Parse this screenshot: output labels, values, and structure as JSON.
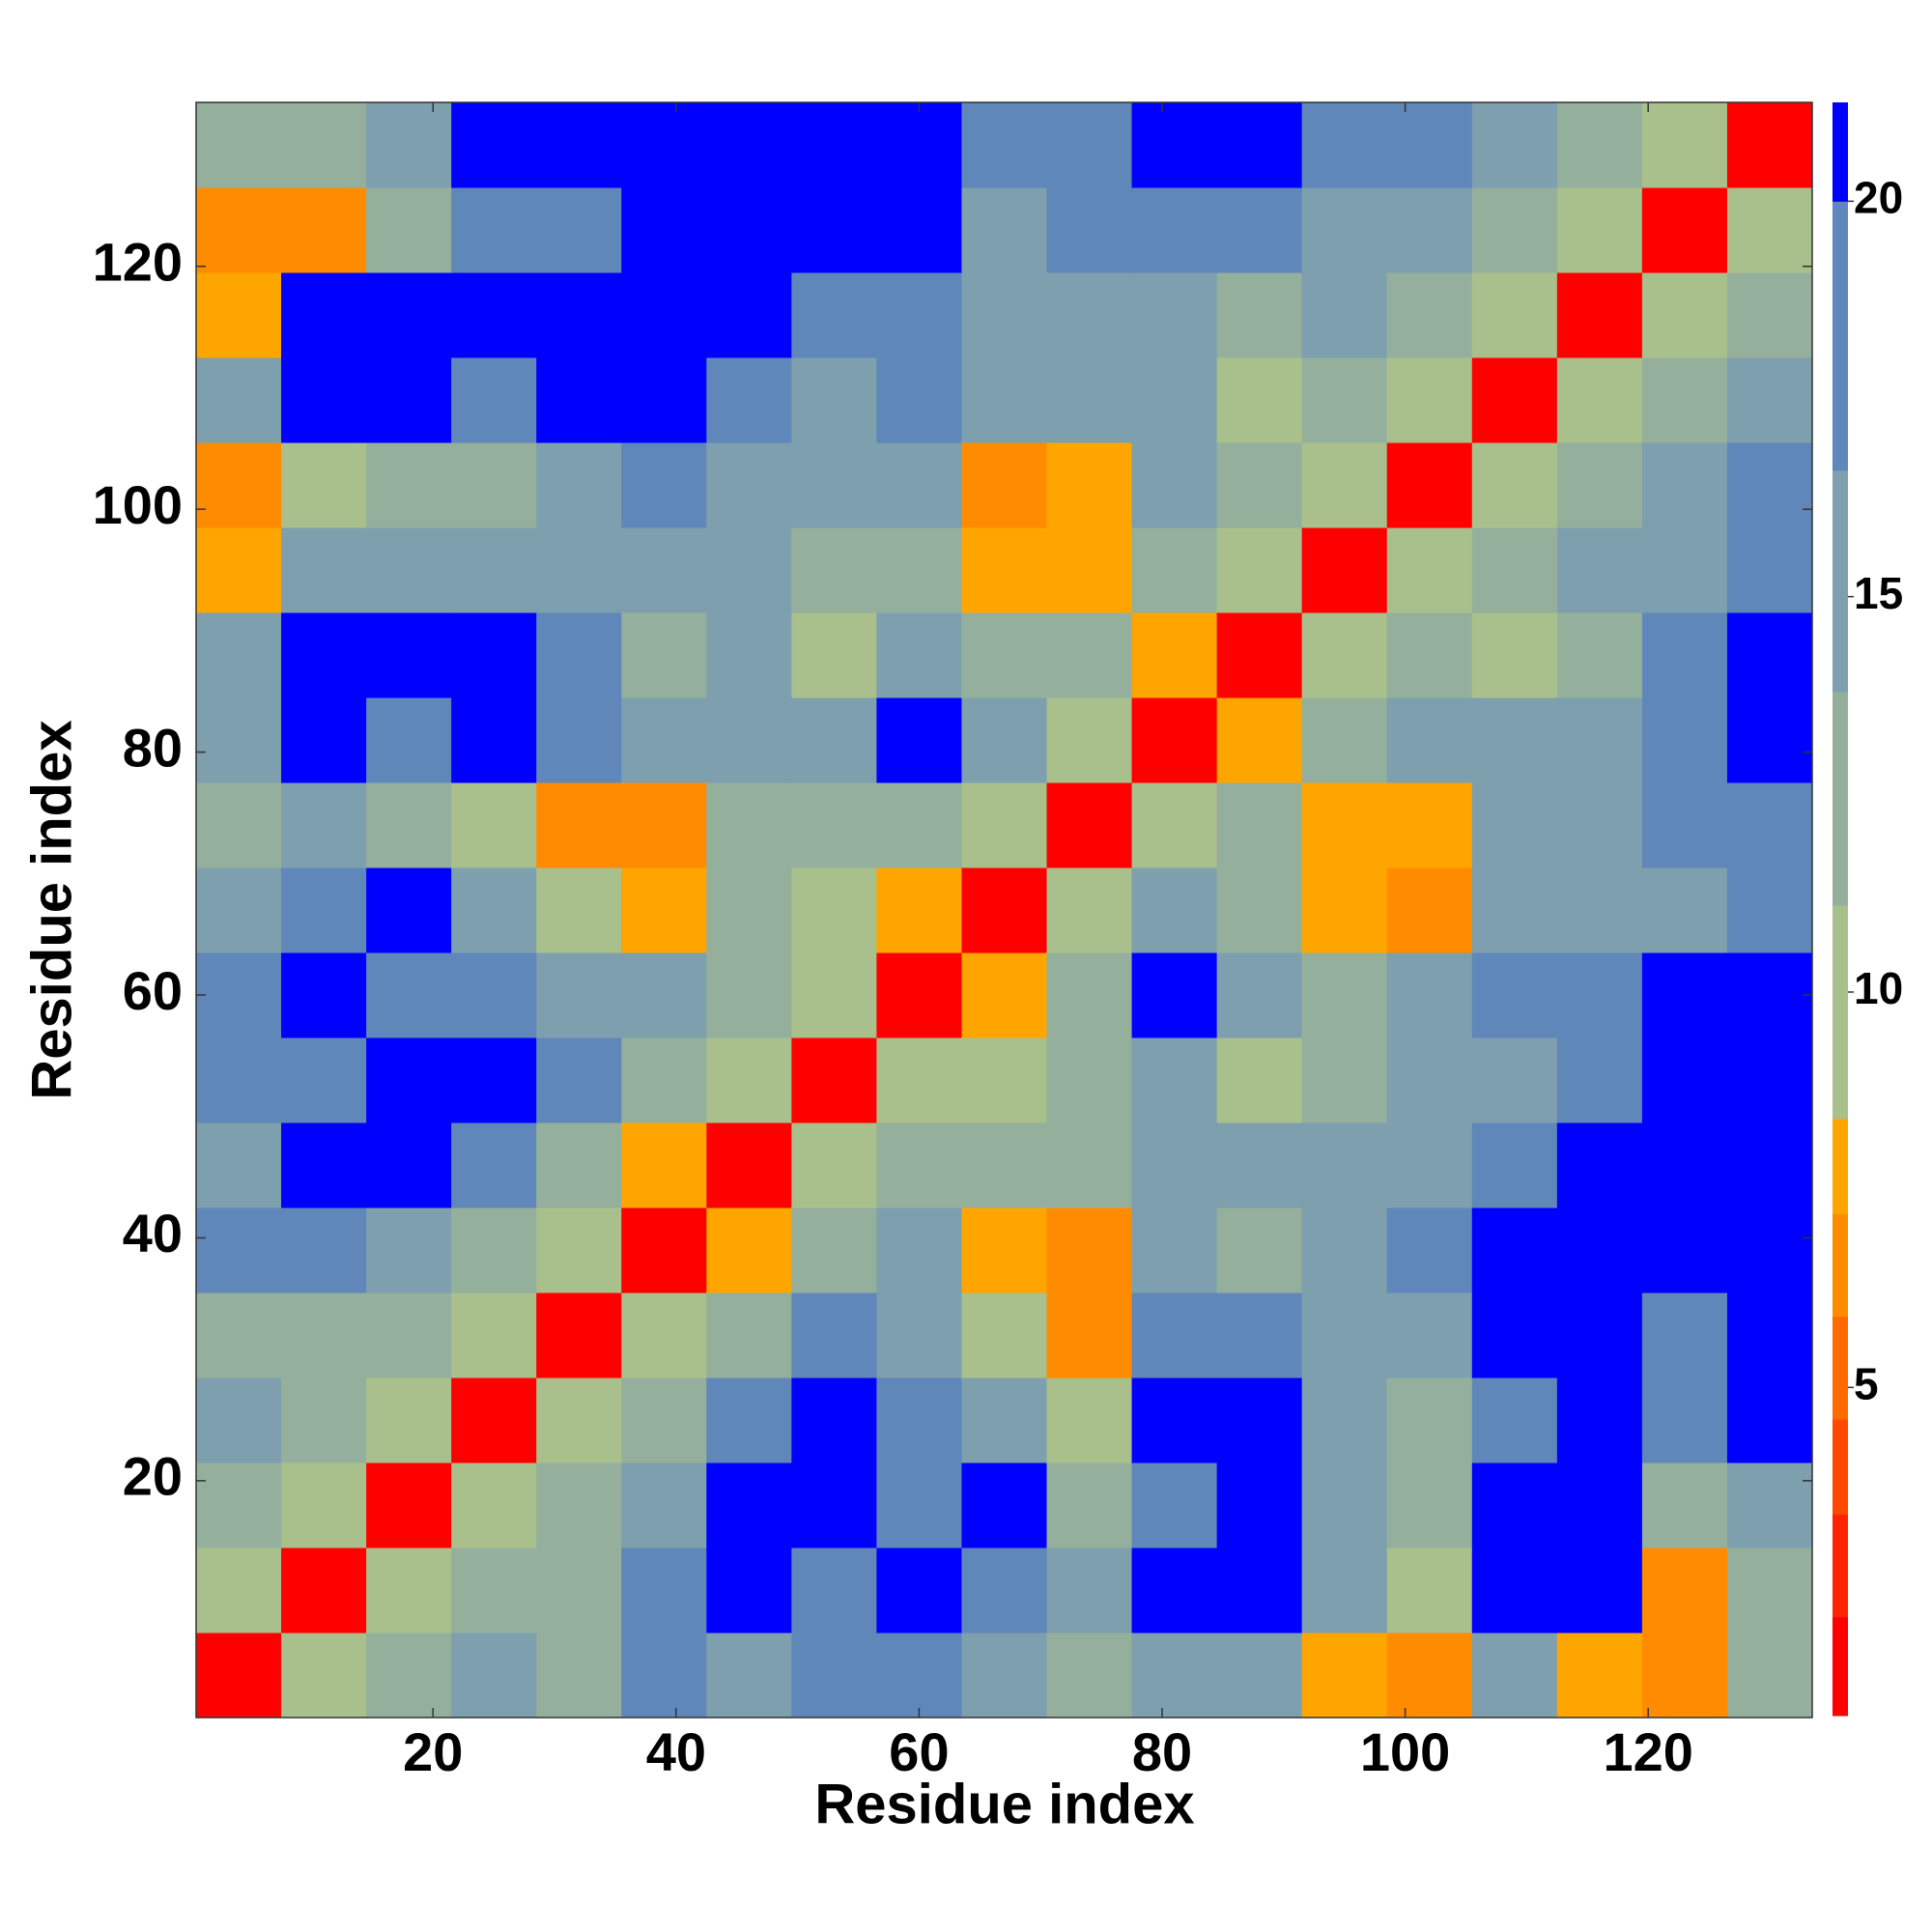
{
  "chart_data": {
    "type": "heatmap",
    "xlabel": "Residue index",
    "ylabel": "Residue index",
    "xbins": [
      0.5,
      7.5,
      14.5,
      21.5,
      28.5,
      35.5,
      42.5,
      49.5,
      56.5,
      63.5,
      70.5,
      77.5,
      84.5,
      91.5,
      98.5,
      105.5,
      112.5,
      119.5,
      126.5,
      133.5
    ],
    "ybins": [
      0.5,
      7.5,
      14.5,
      21.5,
      28.5,
      35.5,
      42.5,
      49.5,
      56.5,
      63.5,
      70.5,
      77.5,
      84.5,
      91.5,
      98.5,
      105.5,
      112.5,
      119.5,
      126.5,
      133.5
    ],
    "values": [
      [
        2,
        9,
        13,
        16,
        13,
        17,
        15,
        19,
        19,
        15,
        12,
        16,
        14,
        8,
        7,
        16,
        8,
        7,
        12
      ],
      [
        9,
        2,
        10,
        13,
        12,
        18,
        20,
        17,
        21,
        19,
        14,
        20,
        21,
        15,
        10,
        21,
        21,
        7,
        13
      ],
      [
        13,
        10,
        2,
        10,
        12,
        16,
        20,
        21,
        19,
        20,
        12,
        17,
        21,
        16,
        12,
        21,
        21,
        13,
        16
      ],
      [
        16,
        13,
        10,
        2,
        9,
        12,
        18,
        21,
        18,
        16,
        11,
        21,
        20,
        15,
        13,
        19,
        21,
        18,
        21
      ],
      [
        13,
        12,
        12,
        9,
        2,
        9,
        13,
        17,
        15,
        9,
        7,
        18,
        19,
        14,
        15,
        20,
        21,
        19,
        21
      ],
      [
        17,
        18,
        16,
        12,
        9,
        2,
        8,
        12,
        14,
        8,
        7,
        15,
        12,
        14,
        17,
        20,
        21,
        21,
        21
      ],
      [
        15,
        20,
        20,
        18,
        13,
        8,
        2,
        9,
        12,
        13,
        12,
        16,
        14,
        15,
        16,
        19,
        21,
        21,
        21
      ],
      [
        19,
        17,
        21,
        21,
        17,
        12,
        9,
        2,
        9,
        11,
        13,
        16,
        10,
        13,
        15,
        16,
        18,
        21,
        21
      ],
      [
        19,
        21,
        19,
        18,
        15,
        14,
        12,
        9,
        2,
        8,
        13,
        20,
        14,
        12,
        14,
        17,
        19,
        21,
        20
      ],
      [
        15,
        19,
        20,
        16,
        9,
        8,
        13,
        11,
        8,
        2,
        9,
        14,
        12,
        8,
        7,
        16,
        15,
        16,
        19
      ],
      [
        12,
        14,
        12,
        11,
        7,
        7,
        12,
        13,
        13,
        9,
        2,
        9,
        12,
        8,
        8,
        14,
        15,
        17,
        17
      ],
      [
        16,
        20,
        17,
        21,
        18,
        15,
        16,
        16,
        20,
        14,
        9,
        2,
        8,
        12,
        14,
        14,
        16,
        18,
        20
      ],
      [
        14,
        21,
        21,
        20,
        19,
        12,
        14,
        10,
        14,
        12,
        12,
        8,
        2,
        9,
        12,
        11,
        13,
        18,
        21
      ],
      [
        8,
        15,
        16,
        15,
        14,
        14,
        15,
        13,
        12,
        8,
        8,
        12,
        9,
        2,
        9,
        13,
        15,
        16,
        19
      ],
      [
        7,
        10,
        12,
        13,
        15,
        17,
        16,
        15,
        14,
        7,
        8,
        14,
        12,
        9,
        2,
        9,
        12,
        15,
        19
      ],
      [
        16,
        21,
        21,
        19,
        20,
        20,
        19,
        16,
        17,
        16,
        14,
        14,
        11,
        13,
        9,
        2,
        9,
        12,
        16
      ],
      [
        8,
        21,
        21,
        21,
        21,
        21,
        21,
        18,
        19,
        15,
        15,
        16,
        13,
        15,
        12,
        9,
        2,
        9,
        12
      ],
      [
        7,
        7,
        13,
        18,
        19,
        21,
        21,
        21,
        21,
        16,
        17,
        18,
        18,
        16,
        15,
        12,
        9,
        2,
        9
      ],
      [
        12,
        13,
        16,
        21,
        21,
        21,
        21,
        21,
        20,
        19,
        17,
        20,
        21,
        19,
        19,
        16,
        12,
        9,
        2
      ]
    ],
    "xlim": [
      0.5,
      133.5
    ],
    "ylim": [
      0.5,
      133.5
    ],
    "xticks": [
      20,
      40,
      60,
      80,
      100,
      120
    ],
    "yticks": [
      20,
      40,
      60,
      80,
      100,
      120
    ],
    "clim": [
      0.85,
      21.25
    ],
    "cticks": [
      5,
      10,
      15,
      20
    ],
    "levels": [
      0.85,
      2.1,
      3.4,
      4.6,
      5.9,
      7.2,
      8.4,
      11.1,
      13.8,
      16.6,
      20.0,
      21.25
    ],
    "colors": [
      "#ff0000",
      "#ff2400",
      "#ff4800",
      "#ff6a00",
      "#ff8c00",
      "#ffa500",
      "#a9bf8c",
      "#94b09c",
      "#7d9fae",
      "#5f87b9",
      "#0000ff"
    ]
  }
}
